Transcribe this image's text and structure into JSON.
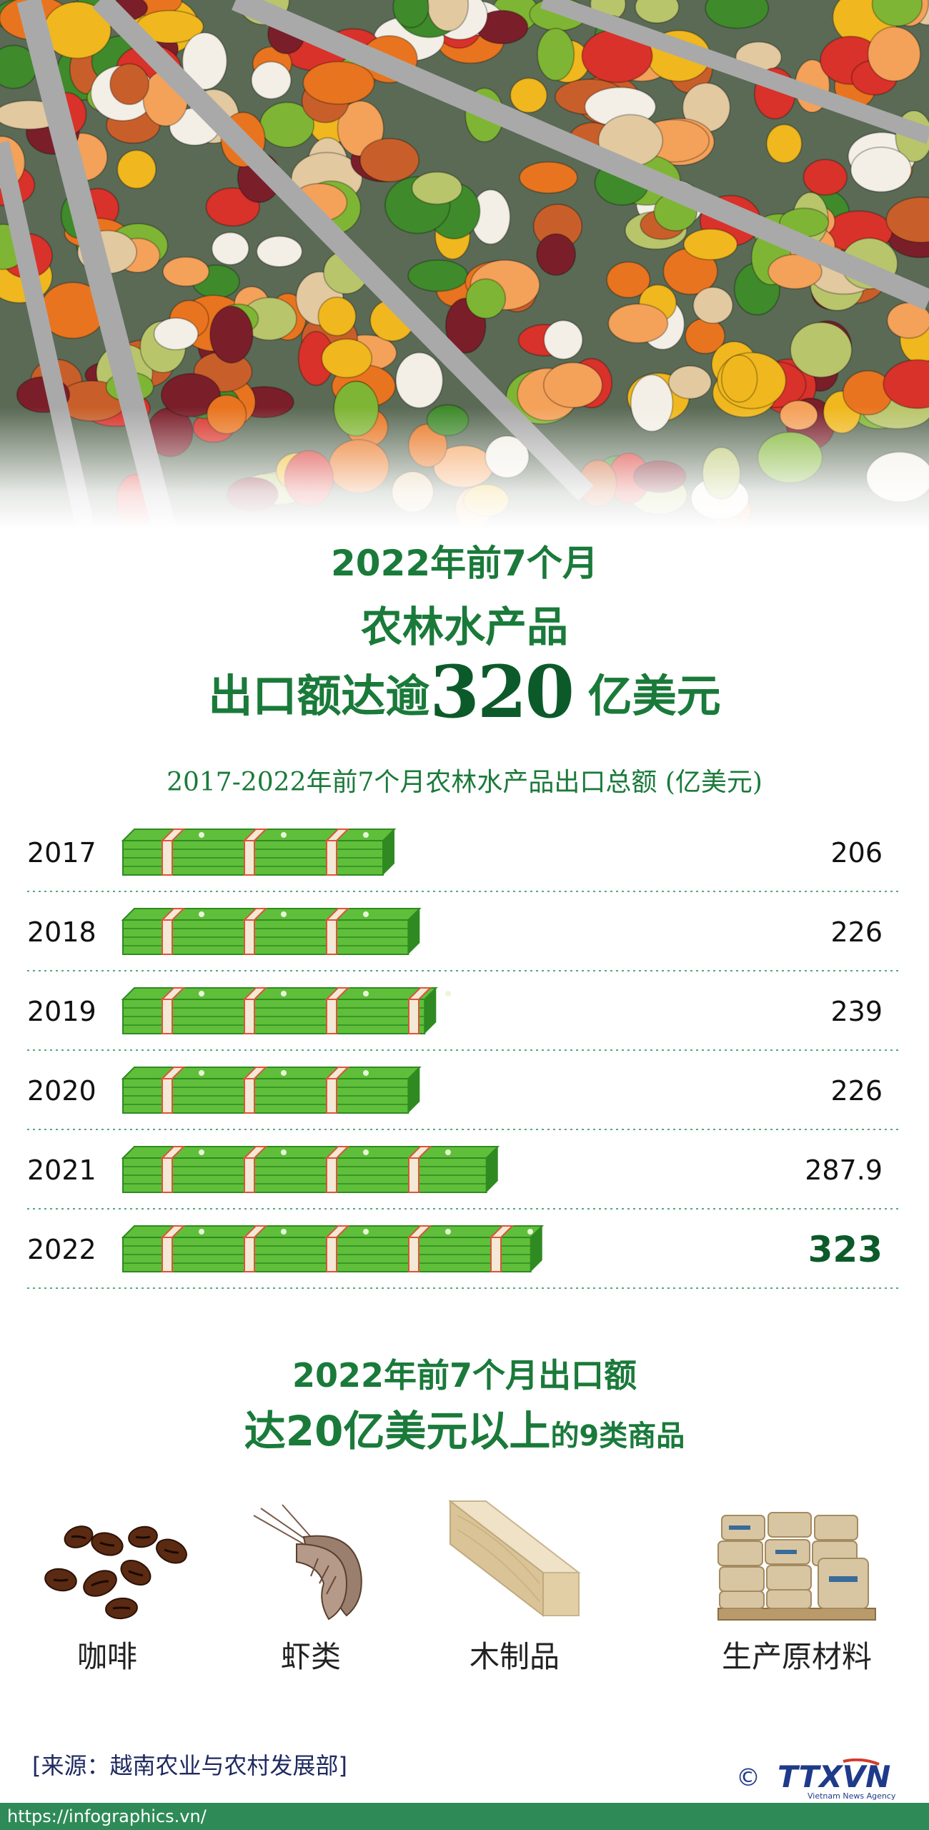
{
  "header": {
    "line1": "2022年前7个月",
    "line2": "农林水产品",
    "line3_prefix": "出口额达逾",
    "line3_number": "320",
    "line3_suffix": "亿美元"
  },
  "chart_data": {
    "type": "bar",
    "orientation": "horizontal",
    "title": "2017-2022年前7个月农林水产品出口总额 (亿美元)",
    "categories": [
      "2017",
      "2018",
      "2019",
      "2020",
      "2021",
      "2022"
    ],
    "values": [
      206,
      226,
      239,
      226,
      287.9,
      323
    ],
    "value_labels": [
      "206",
      "226",
      "239",
      "226",
      "287.9",
      "323"
    ],
    "highlight_last": true,
    "grid": false,
    "colors": {
      "bill": "#5fbf3a",
      "bill_dark": "#2f8a22",
      "band": "#f3e9d6",
      "band_stripe": "#d9553a",
      "highlight_text": "#0c5a2a"
    }
  },
  "section2": {
    "line1": "2022年前7个月出口额",
    "line2_main": "达20亿美元以上",
    "line2_small": "的9类商品"
  },
  "products": [
    {
      "label": "咖啡",
      "icon": "coffee-beans-icon"
    },
    {
      "label": "虾类",
      "icon": "shrimp-icon"
    },
    {
      "label": "木制品",
      "icon": "wood-plank-icon"
    },
    {
      "label": "生产原材料",
      "icon": "material-sacks-icon"
    }
  ],
  "footer": {
    "source": "[来源：越南农业与农村发展部]",
    "copyright_symbol": "©",
    "logo_text": "TTXVN",
    "logo_subtext": "Vietnam News Agency",
    "url": "https://infographics.vn/"
  }
}
